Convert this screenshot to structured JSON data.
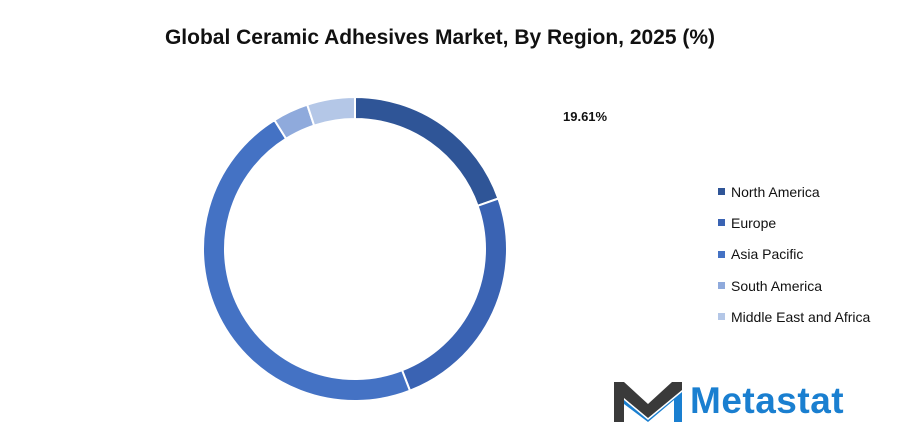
{
  "chart_data": {
    "type": "pie",
    "donut": true,
    "title": "Global Ceramic Adhesives Market, By Region, 2025 (%)",
    "categories": [
      "North America",
      "Europe",
      "Asia Pacific",
      "South America",
      "Middle East and Africa"
    ],
    "values": [
      19.61,
      24.5,
      47.0,
      3.8,
      5.09
    ],
    "colors": [
      "#2f5597",
      "#3a63b3",
      "#4472c4",
      "#8faadc",
      "#b4c7e7"
    ],
    "data_labels": [
      {
        "category": "North America",
        "text": "19.61%"
      }
    ],
    "legend_position": "right"
  },
  "logo": {
    "text": "Metastat"
  }
}
